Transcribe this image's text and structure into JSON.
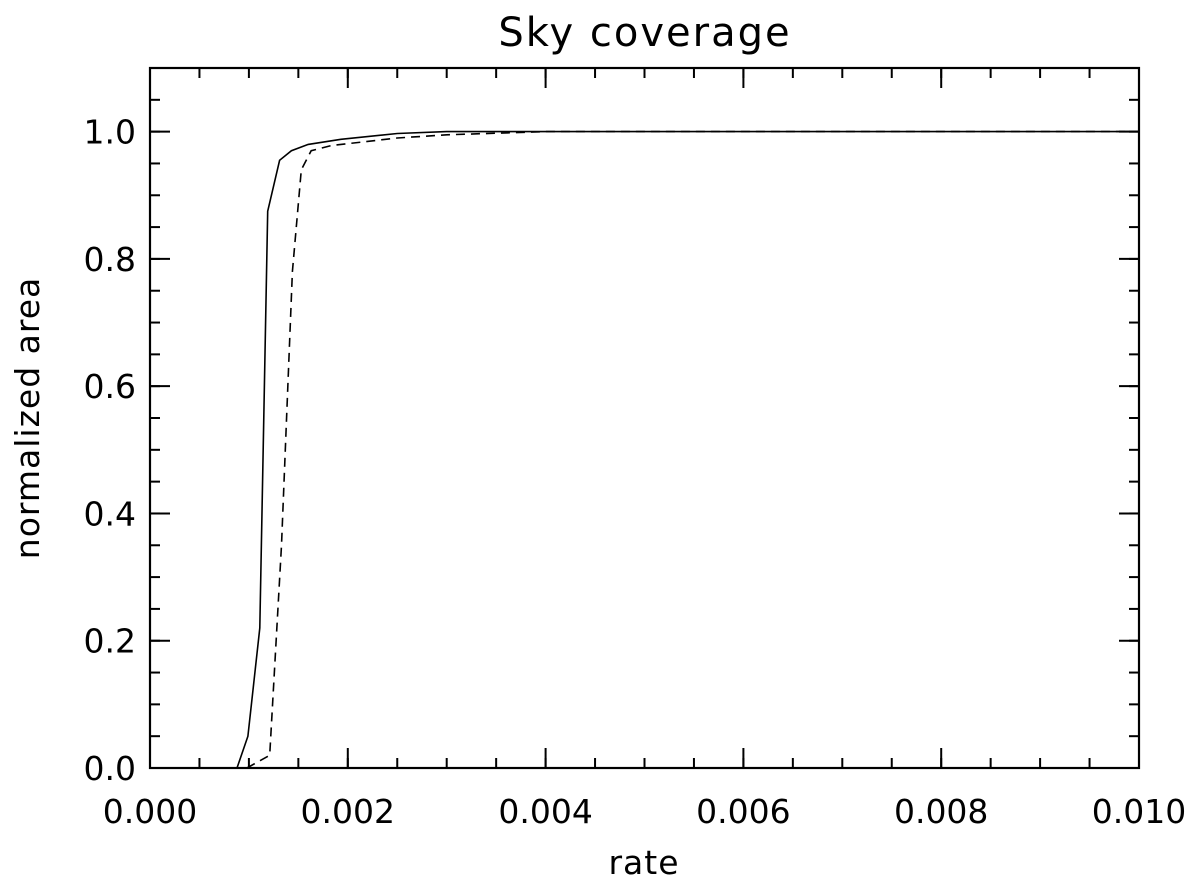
{
  "chart_data": {
    "type": "line",
    "title": "Sky coverage",
    "xlabel": "rate",
    "ylabel": "normalized area",
    "xlim": [
      0.0,
      0.01
    ],
    "ylim": [
      0.0,
      1.1
    ],
    "x_ticks": [
      0.0,
      0.002,
      0.004,
      0.006,
      0.008,
      0.01
    ],
    "x_tick_labels": [
      "0.000",
      "0.002",
      "0.004",
      "0.006",
      "0.008",
      "0.010"
    ],
    "x_minor_step": 0.0005,
    "y_ticks": [
      0.0,
      0.2,
      0.4,
      0.6,
      0.8,
      1.0
    ],
    "y_tick_labels": [
      "0.0",
      "0.2",
      "0.4",
      "0.6",
      "0.8",
      "1.0"
    ],
    "y_minor_step": 0.05,
    "grid": false,
    "legend": "none",
    "series": [
      {
        "style": "solid",
        "x": [
          0.0,
          0.00085,
          0.00088,
          0.00099,
          0.00111,
          0.00119,
          0.00131,
          0.00143,
          0.0016,
          0.00193,
          0.0025,
          0.003,
          0.004,
          0.01
        ],
        "y": [
          0.0,
          0.0,
          0.0,
          0.05,
          0.22,
          0.875,
          0.955,
          0.97,
          0.98,
          0.988,
          0.997,
          1.0,
          1.0,
          1.0
        ]
      },
      {
        "style": "dashed",
        "x": [
          0.00098,
          0.00121,
          0.00133,
          0.00144,
          0.00153,
          0.00163,
          0.00183,
          0.0025,
          0.003,
          0.004,
          0.01
        ],
        "y": [
          0.0,
          0.02,
          0.35,
          0.78,
          0.94,
          0.97,
          0.978,
          0.99,
          0.995,
          1.0,
          1.0
        ]
      }
    ]
  }
}
